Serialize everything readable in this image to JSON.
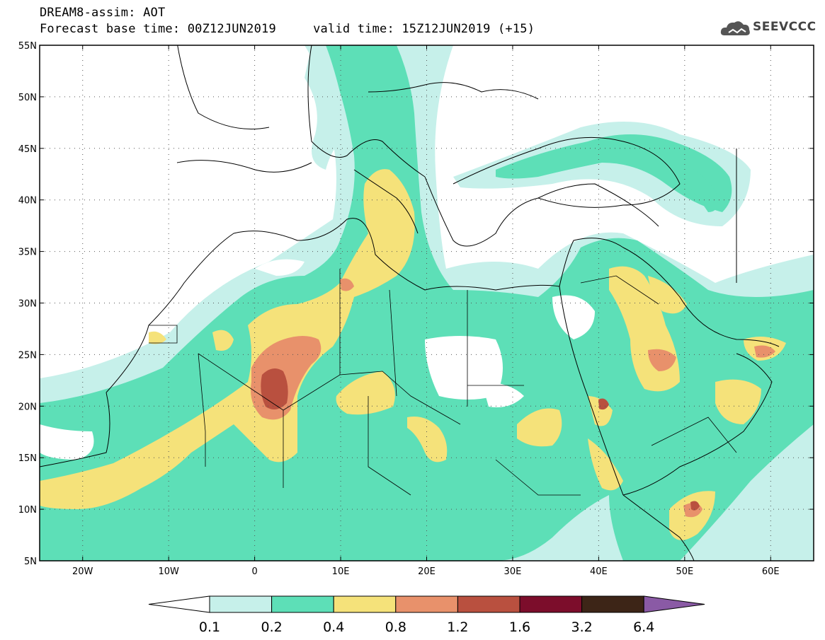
{
  "header": {
    "title": "DREAM8-assim: AOT",
    "subtitle_left": "Forecast base time: 00Z12JUN2019",
    "subtitle_right": "valid time: 15Z12JUN2019 (+15)",
    "logo_text": "SEEVCCC"
  },
  "map": {
    "lat_labels": [
      "55N",
      "50N",
      "45N",
      "40N",
      "35N",
      "30N",
      "25N",
      "20N",
      "15N",
      "10N",
      "5N"
    ],
    "lon_labels": [
      "20W",
      "10W",
      "0",
      "10E",
      "20E",
      "30E",
      "40E",
      "50E",
      "60E"
    ],
    "lat_values": [
      55,
      50,
      45,
      40,
      35,
      30,
      25,
      20,
      15,
      10,
      5
    ],
    "lon_values": [
      -20,
      -10,
      0,
      10,
      20,
      30,
      40,
      50,
      60
    ],
    "extent": {
      "lon_min": -25,
      "lon_max": 65,
      "lat_min": 5,
      "lat_max": 55
    }
  },
  "colorbar": {
    "labels": [
      "0.1",
      "0.2",
      "0.4",
      "0.8",
      "1.2",
      "1.6",
      "3.2",
      "6.4"
    ],
    "colors": [
      "#ffffff",
      "#c6f0ea",
      "#5ddfb7",
      "#f5e27a",
      "#e8916b",
      "#b9503f",
      "#7c0d2b",
      "#3d2517",
      "#8a5aa5"
    ]
  }
}
